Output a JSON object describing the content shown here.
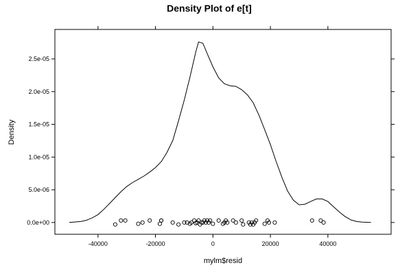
{
  "chart_data": {
    "type": "line",
    "title": "Density Plot of e[t]",
    "xlabel": "mylm$resid",
    "ylabel": "Density",
    "xlim": [
      -55000,
      62000
    ],
    "ylim": [
      -1.8e-06,
      2.95e-05
    ],
    "x_ticks": [
      {
        "value": -40000,
        "label": "-40000"
      },
      {
        "value": -20000,
        "label": "-20000"
      },
      {
        "value": 0,
        "label": "0"
      },
      {
        "value": 20000,
        "label": "20000"
      },
      {
        "value": 40000,
        "label": "40000"
      }
    ],
    "y_ticks": [
      {
        "value": 0,
        "label": "0.0e+00"
      },
      {
        "value": 5e-06,
        "label": "5.0e-06"
      },
      {
        "value": 1e-05,
        "label": "1.0e-05"
      },
      {
        "value": 1.5e-05,
        "label": "1.5e-05"
      },
      {
        "value": 2e-05,
        "label": "2.0e-05"
      },
      {
        "value": 2.5e-05,
        "label": "2.5e-05"
      }
    ],
    "density": {
      "x": [
        -50000,
        -46000,
        -44000,
        -42000,
        -40000,
        -38000,
        -36000,
        -34000,
        -32000,
        -30000,
        -28000,
        -26000,
        -24000,
        -22000,
        -20000,
        -18000,
        -16000,
        -14000,
        -12000,
        -10000,
        -8000,
        -6000,
        -5000,
        -3500,
        -2000,
        0,
        2000,
        4000,
        6000,
        8000,
        10000,
        12000,
        14000,
        16000,
        18000,
        20000,
        22000,
        24000,
        26000,
        28000,
        30000,
        32000,
        34000,
        36000,
        38000,
        40000,
        42000,
        44000,
        46000,
        48000,
        50000,
        52000,
        55000
      ],
      "y": [
        0,
        1.5e-07,
        3.5e-07,
        7e-07,
        1.2e-06,
        2e-06,
        2.9e-06,
        3.8e-06,
        4.7e-06,
        5.5e-06,
        6.1e-06,
        6.6e-06,
        7.1e-06,
        7.7e-06,
        8.4e-06,
        9.3e-06,
        1.07e-05,
        1.25e-05,
        1.55e-05,
        1.87e-05,
        2.22e-05,
        2.6e-05,
        2.76e-05,
        2.74e-05,
        2.58e-05,
        2.38e-05,
        2.21e-05,
        2.12e-05,
        2.09e-05,
        2.08e-05,
        2.03e-05,
        1.95e-05,
        1.83e-05,
        1.64e-05,
        1.42e-05,
        1.19e-05,
        9.3e-06,
        6.9e-06,
        4.8e-06,
        3.4e-06,
        2.7e-06,
        2.8e-06,
        3.2e-06,
        3.6e-06,
        3.6e-06,
        3.2e-06,
        2.4e-06,
        1.6e-06,
        9e-07,
        4e-07,
        1.5e-07,
        5e-08,
        0
      ]
    },
    "points": {
      "x": [
        -34000,
        -32000,
        -30500,
        -26000,
        -24500,
        -22000,
        -18500,
        -18000,
        -18000,
        -14000,
        -12000,
        -10000,
        -9000,
        -8000,
        -7500,
        -6500,
        -6000,
        -5500,
        -5000,
        -4500,
        -4000,
        -3500,
        -3000,
        -2500,
        -2000,
        -1500,
        -1000,
        0,
        2000,
        3500,
        4000,
        4500,
        5000,
        7000,
        8000,
        10000,
        10500,
        12500,
        13000,
        13500,
        14000,
        14500,
        15000,
        18000,
        19000,
        19500,
        21500,
        34500,
        37500,
        38500
      ],
      "y": [
        -3e-07,
        3e-07,
        3e-07,
        -2e-07,
        0,
        3e-07,
        -2e-07,
        3e-07,
        3e-07,
        0,
        -3e-07,
        0,
        0,
        -2e-07,
        0,
        3e-07,
        -1e-07,
        0,
        3e-07,
        -3e-07,
        0,
        0,
        3e-07,
        0,
        3e-07,
        0,
        3e-07,
        -2e-07,
        3e-07,
        -2e-07,
        0,
        3e-07,
        0,
        3e-07,
        0,
        3e-07,
        -3e-07,
        0,
        -3e-07,
        0,
        -3e-07,
        0,
        3e-07,
        -2e-07,
        3e-07,
        0,
        0,
        3e-07,
        3e-07,
        0
      ]
    }
  }
}
